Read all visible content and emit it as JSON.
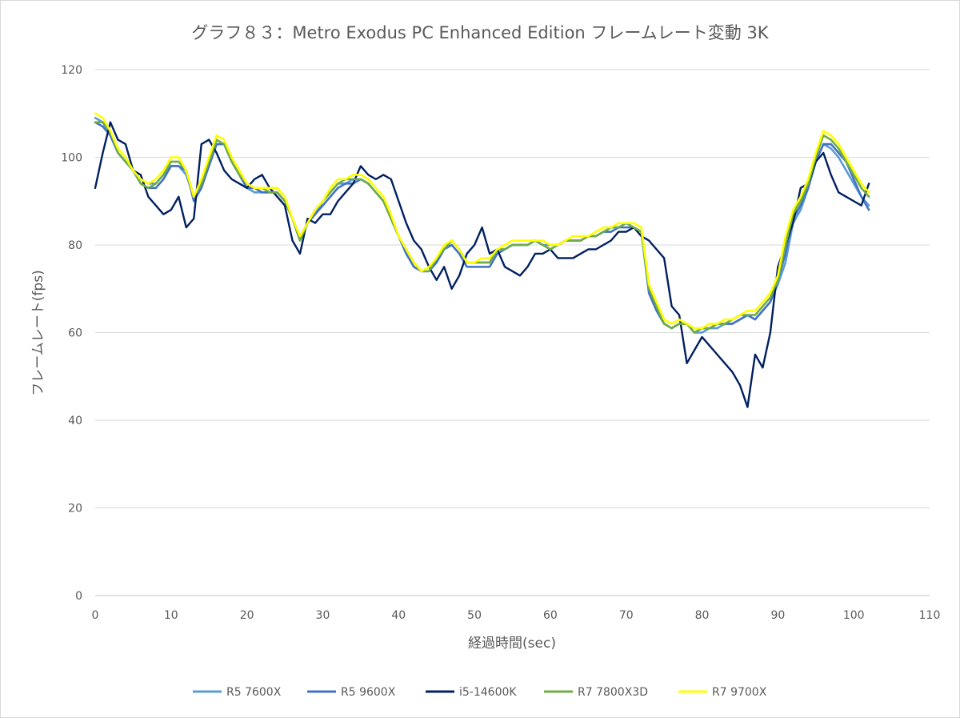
{
  "chart_data": {
    "type": "line",
    "title": "グラフ８３：Metro Exodus PC Enhanced Edition フレームレート変動 3K",
    "xlabel": "経過時間(sec)",
    "ylabel": "フレームレート(fps)",
    "xlim": [
      0,
      110
    ],
    "ylim": [
      0,
      120
    ],
    "xticks": [
      0,
      10,
      20,
      30,
      40,
      50,
      60,
      70,
      80,
      90,
      100,
      110
    ],
    "yticks": [
      0,
      20,
      40,
      60,
      80,
      100,
      120
    ],
    "grid": true,
    "legend_position": "bottom",
    "x": [
      0,
      1,
      2,
      3,
      4,
      5,
      6,
      7,
      8,
      9,
      10,
      11,
      12,
      13,
      14,
      15,
      16,
      17,
      18,
      19,
      20,
      21,
      22,
      23,
      24,
      25,
      26,
      27,
      28,
      29,
      30,
      31,
      32,
      33,
      34,
      35,
      36,
      37,
      38,
      39,
      40,
      41,
      42,
      43,
      44,
      45,
      46,
      47,
      48,
      49,
      50,
      51,
      52,
      53,
      54,
      55,
      56,
      57,
      58,
      59,
      60,
      61,
      62,
      63,
      64,
      65,
      66,
      67,
      68,
      69,
      70,
      71,
      72,
      73,
      74,
      75,
      76,
      77,
      78,
      79,
      80,
      81,
      82,
      83,
      84,
      85,
      86,
      87,
      88,
      89,
      90,
      91,
      92,
      93,
      94,
      95,
      96,
      97,
      98,
      99,
      100,
      101,
      102
    ],
    "series": [
      {
        "name": "R5 7600X",
        "color": "#5b9bd5",
        "values": [
          109,
          108,
          105,
          101,
          99,
          97,
          95,
          94,
          94,
          96,
          98,
          98,
          96,
          91,
          94,
          98,
          103,
          103,
          99,
          96,
          93,
          92,
          92,
          92,
          92,
          90,
          86,
          82,
          85,
          87,
          90,
          92,
          94,
          94,
          95,
          95,
          94,
          92,
          90,
          86,
          82,
          79,
          76,
          74,
          74,
          76,
          79,
          81,
          79,
          76,
          76,
          76,
          76,
          79,
          79,
          80,
          80,
          80,
          81,
          80,
          80,
          80,
          81,
          81,
          81,
          82,
          82,
          83,
          84,
          84,
          85,
          84,
          83,
          70,
          66,
          62,
          61,
          62,
          62,
          60,
          60,
          61,
          61,
          62,
          62,
          63,
          64,
          63,
          65,
          67,
          71,
          76,
          85,
          88,
          93,
          99,
          103,
          102,
          100,
          97,
          94,
          91,
          89
        ]
      },
      {
        "name": "R5 9600X",
        "color": "#4472c4",
        "values": [
          108,
          107,
          105,
          101,
          99,
          97,
          94,
          93,
          93,
          95,
          98,
          98,
          97,
          90,
          93,
          98,
          103,
          103,
          99,
          96,
          93,
          93,
          92,
          92,
          92,
          90,
          86,
          81,
          85,
          87,
          89,
          91,
          93,
          94,
          94,
          95,
          94,
          92,
          90,
          86,
          82,
          78,
          75,
          74,
          74,
          76,
          79,
          80,
          78,
          75,
          75,
          75,
          75,
          78,
          79,
          80,
          80,
          80,
          81,
          80,
          79,
          80,
          81,
          81,
          81,
          82,
          82,
          83,
          83,
          84,
          84,
          84,
          83,
          69,
          65,
          62,
          61,
          62,
          62,
          60,
          61,
          61,
          62,
          62,
          62,
          63,
          64,
          63,
          65,
          67,
          72,
          78,
          86,
          89,
          93,
          99,
          103,
          103,
          101,
          99,
          95,
          91,
          88
        ]
      },
      {
        "name": "i5-14600K",
        "color": "#002060",
        "values": [
          93,
          101,
          108,
          104,
          103,
          97,
          96,
          91,
          89,
          87,
          88,
          91,
          84,
          86,
          103,
          104,
          101,
          97,
          95,
          94,
          93,
          95,
          96,
          93,
          91,
          89,
          81,
          78,
          86,
          85,
          87,
          87,
          90,
          92,
          94,
          98,
          96,
          95,
          96,
          95,
          90,
          85,
          81,
          79,
          75,
          72,
          75,
          70,
          73,
          78,
          80,
          84,
          78,
          79,
          75,
          74,
          73,
          75,
          78,
          78,
          79,
          77,
          77,
          77,
          78,
          79,
          79,
          80,
          81,
          83,
          83,
          84,
          82,
          81,
          79,
          77,
          66,
          64,
          53,
          56,
          59,
          57,
          55,
          53,
          51,
          48,
          43,
          55,
          52,
          60,
          75,
          80,
          85,
          93,
          94,
          99,
          101,
          96,
          92,
          91,
          90,
          89,
          94
        ]
      },
      {
        "name": "R7 7800X3D",
        "color": "#70ad47",
        "values": [
          108,
          108,
          106,
          101,
          99,
          97,
          94,
          93,
          94,
          96,
          99,
          99,
          97,
          91,
          94,
          99,
          104,
          103,
          99,
          96,
          94,
          93,
          93,
          92,
          92,
          90,
          86,
          81,
          85,
          88,
          90,
          92,
          94,
          95,
          95,
          95,
          94,
          92,
          90,
          86,
          82,
          79,
          76,
          74,
          74,
          77,
          79,
          81,
          79,
          76,
          76,
          76,
          76,
          79,
          79,
          80,
          80,
          80,
          81,
          80,
          79,
          80,
          81,
          81,
          81,
          82,
          82,
          83,
          84,
          84,
          85,
          84,
          83,
          70,
          66,
          62,
          61,
          62,
          62,
          60,
          61,
          61,
          62,
          62,
          63,
          64,
          64,
          64,
          66,
          68,
          72,
          80,
          87,
          90,
          94,
          100,
          105,
          104,
          102,
          99,
          96,
          93,
          91
        ]
      },
      {
        "name": "R7 9700X",
        "color": "#ffff00",
        "values": [
          110,
          109,
          106,
          102,
          100,
          97,
          95,
          94,
          95,
          97,
          100,
          100,
          97,
          91,
          95,
          100,
          105,
          104,
          100,
          97,
          94,
          93,
          93,
          93,
          93,
          91,
          86,
          82,
          85,
          88,
          90,
          93,
          95,
          95,
          96,
          96,
          95,
          93,
          91,
          87,
          82,
          79,
          76,
          74,
          75,
          77,
          80,
          81,
          79,
          76,
          76,
          77,
          77,
          79,
          80,
          81,
          81,
          81,
          81,
          81,
          80,
          80,
          81,
          82,
          82,
          82,
          83,
          84,
          84,
          85,
          85,
          85,
          84,
          71,
          67,
          63,
          62,
          63,
          62,
          61,
          61,
          62,
          62,
          63,
          63,
          64,
          65,
          65,
          67,
          69,
          73,
          82,
          88,
          91,
          95,
          101,
          106,
          105,
          103,
          100,
          97,
          94,
          92
        ]
      }
    ]
  }
}
